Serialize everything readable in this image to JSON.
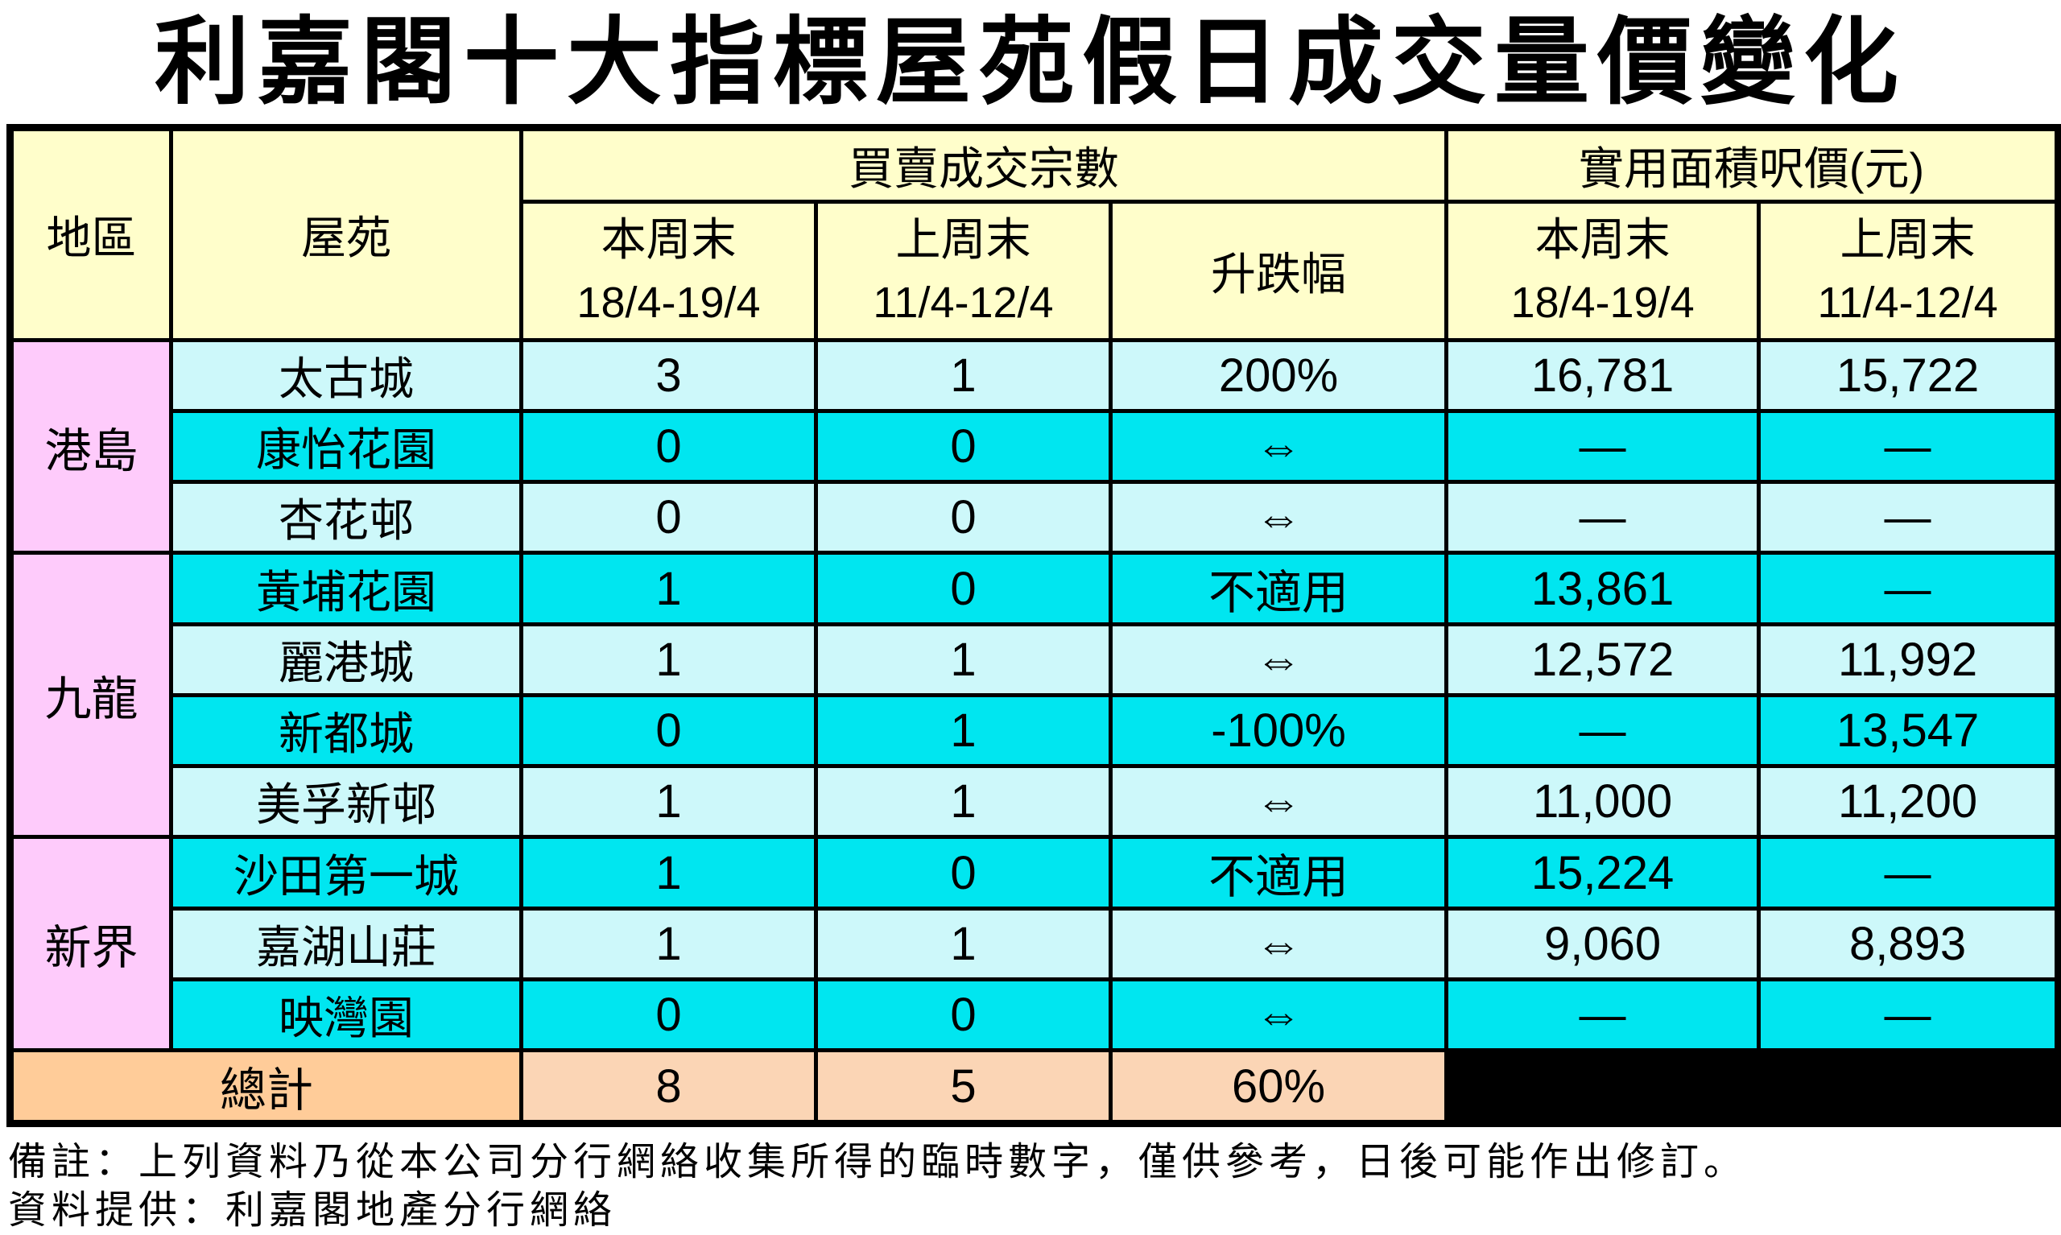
{
  "title": "利嘉閣十大指標屋苑假日成交量價變化",
  "colors": {
    "header_bg": "#FFFECB",
    "region_bg": "#FECBFB",
    "row_light_bg": "#CDF8FA",
    "row_bright_bg": "#00E6F0",
    "total_label_bg": "#FFCC99",
    "total_value_bg": "#FBD5B5",
    "blacked_out_cell": "#000000",
    "border": "#000000",
    "background": "#FFFFFF"
  },
  "table": {
    "headers": {
      "region": "地區",
      "estate": "屋苑",
      "tx_group": "買賣成交宗數",
      "price_group": "實用面積呎價(元)",
      "this_weekend": "本周末",
      "this_dates": "18/4-19/4",
      "last_weekend": "上周末",
      "last_dates": "11/4-12/4",
      "change": "升跌幅"
    },
    "groups": [
      {
        "region": "港島",
        "rows": [
          {
            "estate": "太古城",
            "tx_this": "3",
            "tx_last": "1",
            "change": "200%",
            "price_this": "16,781",
            "price_last": "15,722",
            "shade": "light"
          },
          {
            "estate": "康怡花園",
            "tx_this": "0",
            "tx_last": "0",
            "change": "⇔",
            "price_this": "—",
            "price_last": "—",
            "shade": "bright"
          },
          {
            "estate": "杏花邨",
            "tx_this": "0",
            "tx_last": "0",
            "change": "⇔",
            "price_this": "—",
            "price_last": "—",
            "shade": "light"
          }
        ]
      },
      {
        "region": "九龍",
        "rows": [
          {
            "estate": "黃埔花園",
            "tx_this": "1",
            "tx_last": "0",
            "change": "不適用",
            "price_this": "13,861",
            "price_last": "—",
            "shade": "bright"
          },
          {
            "estate": "麗港城",
            "tx_this": "1",
            "tx_last": "1",
            "change": "⇔",
            "price_this": "12,572",
            "price_last": "11,992",
            "shade": "light"
          },
          {
            "estate": "新都城",
            "tx_this": "0",
            "tx_last": "1",
            "change": "-100%",
            "price_this": "—",
            "price_last": "13,547",
            "shade": "bright"
          },
          {
            "estate": "美孚新邨",
            "tx_this": "1",
            "tx_last": "1",
            "change": "⇔",
            "price_this": "11,000",
            "price_last": "11,200",
            "shade": "light"
          }
        ]
      },
      {
        "region": "新界",
        "rows": [
          {
            "estate": "沙田第一城",
            "tx_this": "1",
            "tx_last": "0",
            "change": "不適用",
            "price_this": "15,224",
            "price_last": "—",
            "shade": "bright"
          },
          {
            "estate": "嘉湖山莊",
            "tx_this": "1",
            "tx_last": "1",
            "change": "⇔",
            "price_this": "9,060",
            "price_last": "8,893",
            "shade": "light"
          },
          {
            "estate": "映灣園",
            "tx_this": "0",
            "tx_last": "0",
            "change": "⇔",
            "price_this": "—",
            "price_last": "—",
            "shade": "bright"
          }
        ]
      }
    ],
    "total": {
      "label": "總計",
      "tx_this": "8",
      "tx_last": "5",
      "change": "60%"
    }
  },
  "footer": {
    "note": "備註：上列資料乃從本公司分行網絡收集所得的臨時數字，僅供參考，日後可能作出修訂。",
    "source": "資料提供：利嘉閣地產分行網絡"
  },
  "chart_data": {
    "type": "table",
    "title": "利嘉閣十大指標屋苑假日成交量價變化",
    "column_groups": [
      {
        "label": "買賣成交宗數",
        "columns": [
          "本周末 18/4-19/4",
          "上周末 11/4-12/4",
          "升跌幅"
        ]
      },
      {
        "label": "實用面積呎價(元)",
        "columns": [
          "本周末 18/4-19/4",
          "上周末 11/4-12/4"
        ]
      }
    ],
    "columns": [
      "地區",
      "屋苑",
      "成交宗數 本周末 18/4-19/4",
      "成交宗數 上周末 11/4-12/4",
      "升跌幅",
      "呎價 本周末 18/4-19/4",
      "呎價 上周末 11/4-12/4"
    ],
    "rows": [
      [
        "港島",
        "太古城",
        3,
        1,
        "200%",
        16781,
        15722
      ],
      [
        "港島",
        "康怡花園",
        0,
        0,
        "⇔",
        null,
        null
      ],
      [
        "港島",
        "杏花邨",
        0,
        0,
        "⇔",
        null,
        null
      ],
      [
        "九龍",
        "黃埔花園",
        1,
        0,
        "不適用",
        13861,
        null
      ],
      [
        "九龍",
        "麗港城",
        1,
        1,
        "⇔",
        12572,
        11992
      ],
      [
        "九龍",
        "新都城",
        0,
        1,
        "-100%",
        null,
        13547
      ],
      [
        "九龍",
        "美孚新邨",
        1,
        1,
        "⇔",
        11000,
        11200
      ],
      [
        "新界",
        "沙田第一城",
        1,
        0,
        "不適用",
        15224,
        null
      ],
      [
        "新界",
        "嘉湖山莊",
        1,
        1,
        "⇔",
        9060,
        8893
      ],
      [
        "新界",
        "映灣園",
        0,
        0,
        "⇔",
        null,
        null
      ]
    ],
    "total_row": {
      "label": "總計",
      "tx_this": 8,
      "tx_last": 5,
      "change": "60%",
      "price_this": null,
      "price_last": null
    }
  }
}
